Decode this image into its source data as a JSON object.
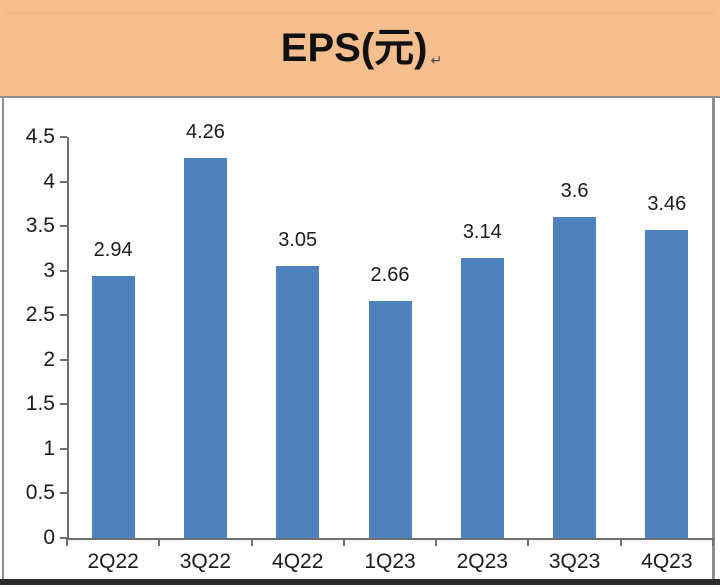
{
  "header": {
    "title": "EPS(元)",
    "return_mark": "↵"
  },
  "colors": {
    "header_bg": "#F5BE8E",
    "bar": "#4F81BD",
    "axis": "#6E6E6E",
    "border_gray": "#8F8F8F",
    "border_dark": "#2B2B2B",
    "text": "#1B1B1B"
  },
  "chart_data": {
    "type": "bar",
    "title": "EPS(元)",
    "xlabel": "",
    "ylabel": "",
    "categories": [
      "2Q22",
      "3Q22",
      "4Q22",
      "1Q23",
      "2Q23",
      "3Q23",
      "4Q23"
    ],
    "values": [
      2.94,
      4.26,
      3.05,
      2.66,
      3.14,
      3.6,
      3.46
    ],
    "data_labels": [
      "2.94",
      "4.26",
      "3.05",
      "2.66",
      "3.14",
      "3.6",
      "3.46"
    ],
    "ylim": [
      0,
      4.5
    ],
    "yticks": [
      0,
      0.5,
      1,
      1.5,
      2,
      2.5,
      3,
      3.5,
      4,
      4.5
    ],
    "ytick_labels": [
      "0",
      "0.5",
      "1",
      "1.5",
      "2",
      "2.5",
      "3",
      "3.5",
      "4",
      "4.5"
    ],
    "grid": false,
    "legend_position": "none"
  }
}
